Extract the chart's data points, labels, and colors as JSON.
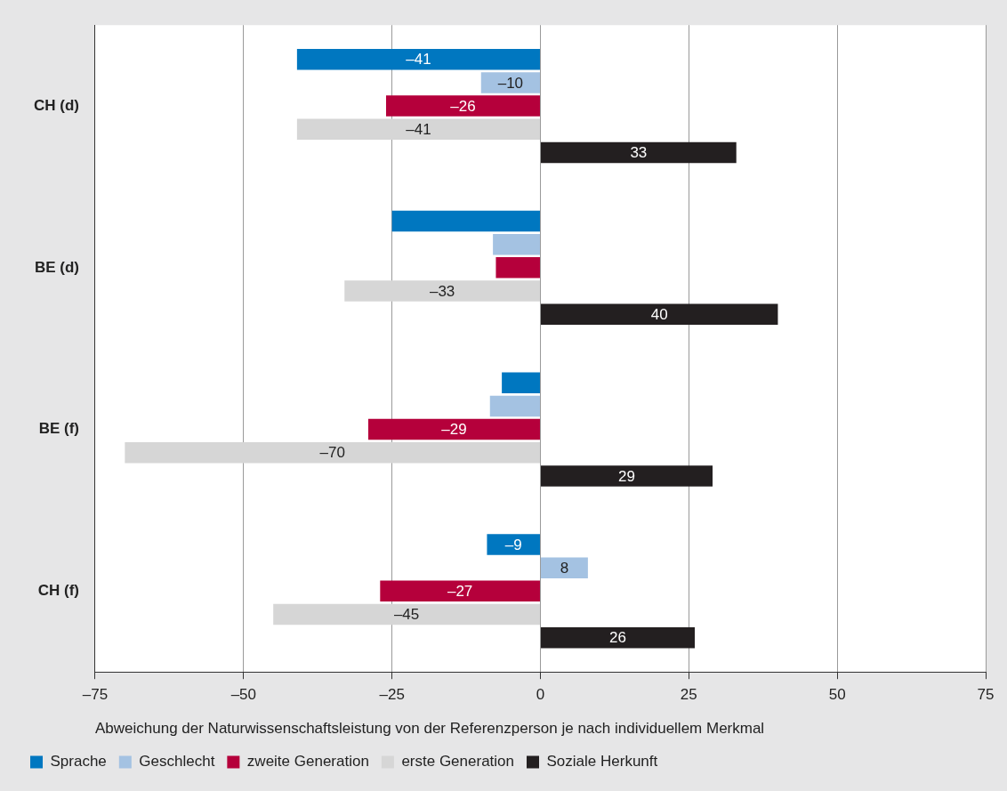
{
  "chart_data": {
    "type": "bar",
    "orientation": "horizontal",
    "xlabel": "Abweichung der Naturwissenschaftsleistung von der Referenzperson je nach individuellem Merkmal",
    "categories": [
      "CH (d)",
      "BE (d)",
      "BE (f)",
      "CH (f)"
    ],
    "series": [
      {
        "name": "Sprache",
        "color": "#0077c0",
        "values": [
          -41,
          -25,
          -6.5,
          -9
        ],
        "value_labels": [
          "–41",
          null,
          null,
          "–9"
        ]
      },
      {
        "name": "Geschlecht",
        "color": "#a4c2e2",
        "values": [
          -10,
          -8,
          -8.5,
          8
        ],
        "value_labels": [
          "–10",
          null,
          null,
          "8"
        ]
      },
      {
        "name": "zweite Generation",
        "color": "#b5003b",
        "values": [
          -26,
          -7.5,
          -29,
          -27
        ],
        "value_labels": [
          "–26",
          null,
          "–29",
          "–27"
        ]
      },
      {
        "name": "erste Generation",
        "color": "#d6d6d6",
        "values": [
          -41,
          -33,
          -70,
          -45
        ],
        "value_labels": [
          "–41",
          "–33",
          "–70",
          "–45"
        ]
      },
      {
        "name": "Soziale Herkunft",
        "color": "#231f20",
        "values": [
          33,
          40,
          29,
          26
        ],
        "value_labels": [
          "33",
          "40",
          "29",
          "26"
        ]
      }
    ],
    "xlim": [
      -75,
      75
    ],
    "xticks": [
      {
        "value": -75,
        "label": "–75"
      },
      {
        "value": -50,
        "label": "–50"
      },
      {
        "value": -25,
        "label": "–25"
      },
      0,
      25,
      50,
      75
    ],
    "grid": "x",
    "legend": "bottom"
  }
}
